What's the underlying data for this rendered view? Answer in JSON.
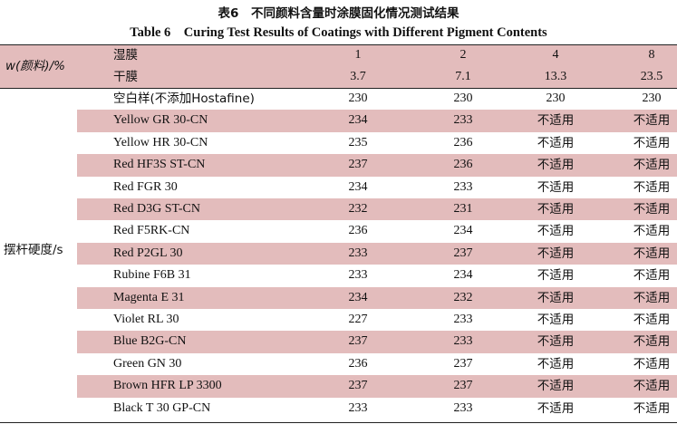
{
  "caption": {
    "chinese": "表6　不同颜料含量时涂膜固化情况测试结果",
    "english": "Table 6　Curing Test Results of Coatings with Different Pigment Contents"
  },
  "header": {
    "row_label": "w(颜料)/%",
    "wet_film_label": "湿膜",
    "dry_film_label": "干膜",
    "wet_film_values": [
      "1",
      "2",
      "4",
      "8"
    ],
    "dry_film_values": [
      "3.7",
      "7.1",
      "13.3",
      "23.5"
    ]
  },
  "group_label": "摆杆硬度/s",
  "rows": [
    {
      "pigment": "空白样(不添加Hostafine)",
      "values": [
        "230",
        "230",
        "230",
        "230"
      ]
    },
    {
      "pigment": "Yellow GR 30-CN",
      "values": [
        "234",
        "233",
        "不适用",
        "不适用"
      ]
    },
    {
      "pigment": "Yellow HR 30-CN",
      "values": [
        "235",
        "236",
        "不适用",
        "不适用"
      ]
    },
    {
      "pigment": "Red HF3S ST-CN",
      "values": [
        "237",
        "236",
        "不适用",
        "不适用"
      ]
    },
    {
      "pigment": "Red FGR 30",
      "values": [
        "234",
        "233",
        "不适用",
        "不适用"
      ]
    },
    {
      "pigment": "Red D3G ST-CN",
      "values": [
        "232",
        "231",
        "不适用",
        "不适用"
      ]
    },
    {
      "pigment": "Red F5RK-CN",
      "values": [
        "236",
        "234",
        "不适用",
        "不适用"
      ]
    },
    {
      "pigment": "Red P2GL 30",
      "values": [
        "233",
        "237",
        "不适用",
        "不适用"
      ]
    },
    {
      "pigment": "Rubine F6B 31",
      "values": [
        "233",
        "234",
        "不适用",
        "不适用"
      ]
    },
    {
      "pigment": "Magenta E 31",
      "values": [
        "234",
        "232",
        "不适用",
        "不适用"
      ]
    },
    {
      "pigment": "Violet RL 30",
      "values": [
        "227",
        "233",
        "不适用",
        "不适用"
      ]
    },
    {
      "pigment": "Blue B2G-CN",
      "values": [
        "237",
        "233",
        "不适用",
        "不适用"
      ]
    },
    {
      "pigment": "Green GN 30",
      "values": [
        "236",
        "237",
        "不适用",
        "不适用"
      ]
    },
    {
      "pigment": "Brown HFR LP 3300",
      "values": [
        "237",
        "237",
        "不适用",
        "不适用"
      ]
    },
    {
      "pigment": "Black T 30 GP-CN",
      "values": [
        "233",
        "233",
        "不适用",
        "不适用"
      ]
    }
  ],
  "colors": {
    "band": "#e3bcbc",
    "rule": "#222222",
    "text": "#111111"
  }
}
